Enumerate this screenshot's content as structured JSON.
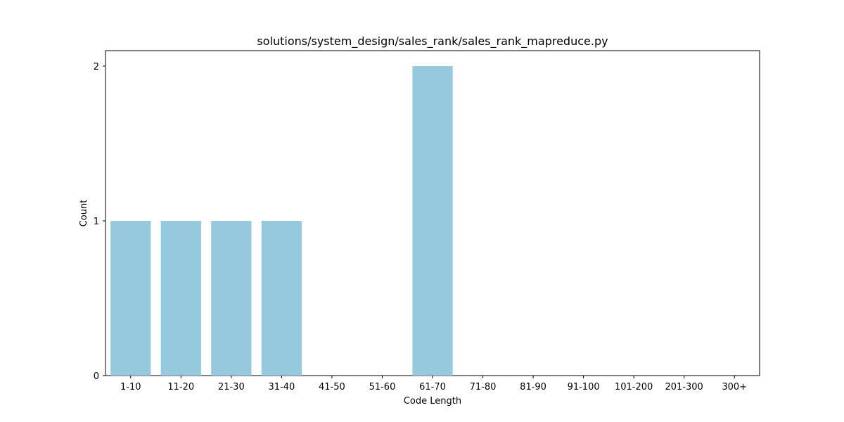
{
  "chart_data": {
    "type": "bar",
    "title": "solutions/system_design/sales_rank/sales_rank_mapreduce.py",
    "xlabel": "Code Length",
    "ylabel": "Count",
    "categories": [
      "1-10",
      "11-20",
      "21-30",
      "31-40",
      "41-50",
      "51-60",
      "61-70",
      "71-80",
      "81-90",
      "91-100",
      "101-200",
      "201-300",
      "300+"
    ],
    "values": [
      1,
      1,
      1,
      1,
      0,
      0,
      2,
      0,
      0,
      0,
      0,
      0,
      0
    ],
    "ylim": [
      0,
      2.1
    ],
    "yticks": [
      "0",
      "1",
      "2"
    ],
    "grid": false,
    "legend": "none",
    "bar_color": "#96c9de"
  }
}
